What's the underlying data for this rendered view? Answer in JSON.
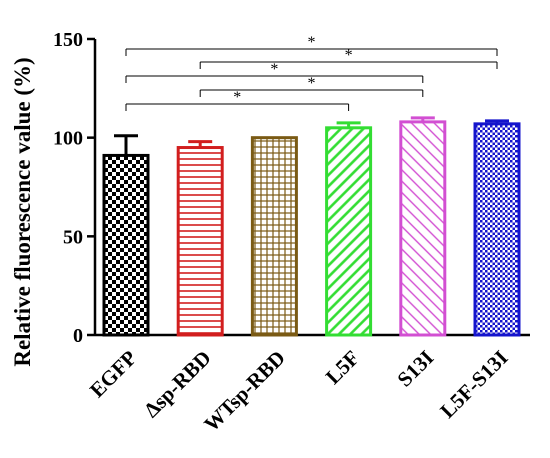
{
  "chart_data": {
    "type": "bar",
    "title": "",
    "xlabel": "",
    "ylabel": "Relative fluorescence value (%)",
    "ylim": [
      0,
      150
    ],
    "yticks": [
      0,
      50,
      100,
      150
    ],
    "grid": false,
    "categories": [
      "EGFP",
      "Δsp-RBD",
      "WTsp-RBD",
      "L5F",
      "S13I",
      "L5F-S13I"
    ],
    "values": [
      91,
      95,
      100,
      105,
      108,
      107
    ],
    "errors": [
      10,
      3,
      0,
      2.5,
      2,
      1.5
    ],
    "colors": [
      "#000000",
      "#d21e1e",
      "#7a5a14",
      "#33dd33",
      "#d24fd2",
      "#1414cc"
    ],
    "patterns": [
      "checker",
      "hlines",
      "grid",
      "diag",
      "diag",
      "dots"
    ],
    "significance": [
      {
        "from": "EGFP",
        "to": "L5F-S13I",
        "label": "*"
      },
      {
        "from": "Δsp-RBD",
        "to": "L5F-S13I",
        "label": "*"
      },
      {
        "from": "EGFP",
        "to": "S13I",
        "label": "*"
      },
      {
        "from": "Δsp-RBD",
        "to": "S13I",
        "label": "*"
      },
      {
        "from": "EGFP",
        "to": "L5F",
        "label": "*"
      }
    ]
  }
}
